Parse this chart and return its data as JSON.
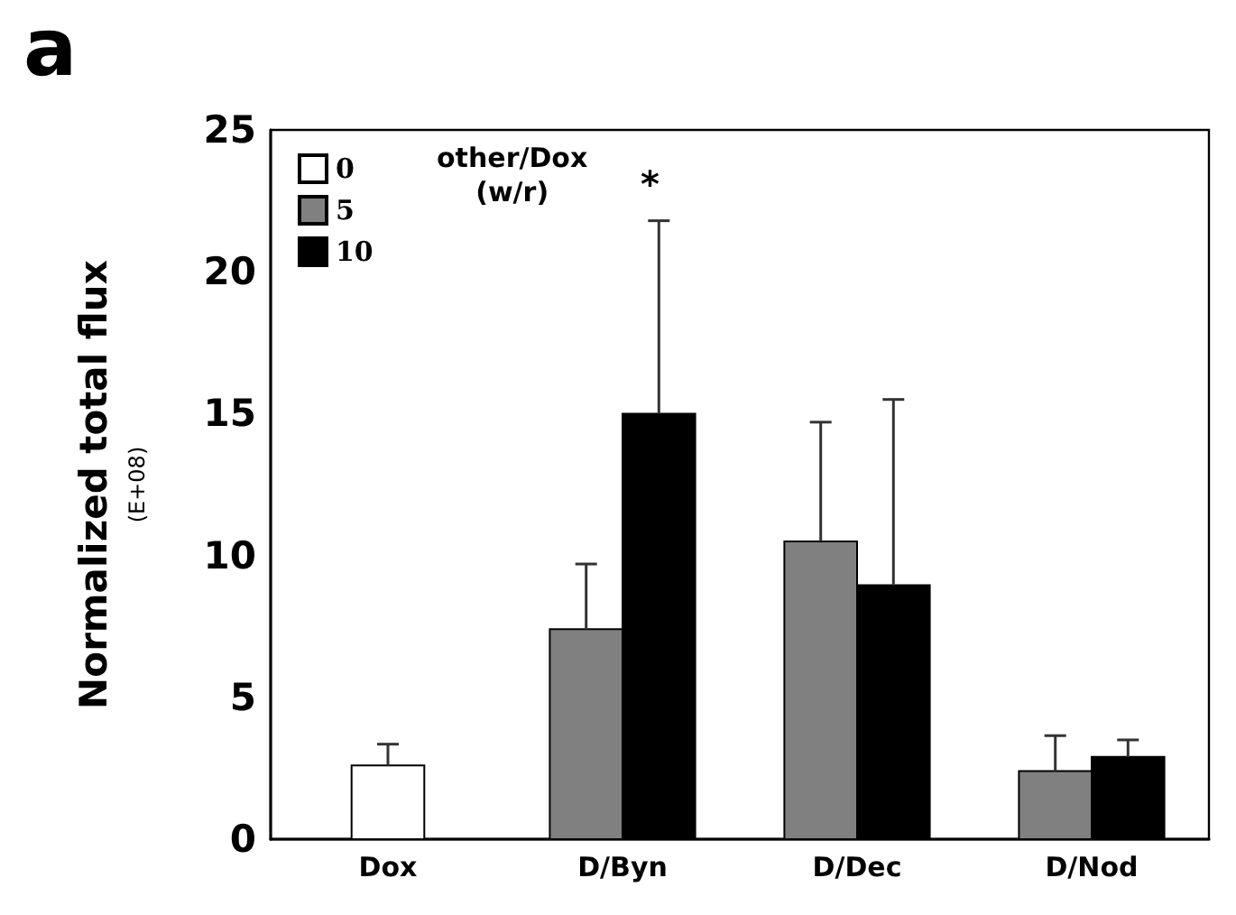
{
  "chart_data": {
    "type": "bar",
    "title": "a",
    "ylabel": "Normalized total flux\n(E+08)",
    "legend_title": "other/Dox\n(w/r)",
    "categories": [
      "Dox",
      "D/Byn",
      "D/Dec",
      "D/Nod"
    ],
    "series": [
      {
        "name": "0",
        "color": "#ffffff",
        "values": [
          2.6,
          null,
          null,
          null
        ],
        "errors": [
          [
            2.6,
            3.35
          ],
          null,
          null,
          null
        ]
      },
      {
        "name": "5",
        "color": "#808080",
        "values": [
          null,
          7.4,
          10.5,
          2.4
        ],
        "errors": [
          null,
          [
            7.4,
            9.7
          ],
          [
            10.5,
            14.7
          ],
          [
            2.4,
            3.65
          ]
        ]
      },
      {
        "name": "10",
        "color": "#000000",
        "values": [
          null,
          15.0,
          8.95,
          2.9
        ],
        "errors": [
          null,
          [
            15.0,
            21.8
          ],
          [
            8.95,
            15.5
          ],
          [
            2.9,
            3.5
          ]
        ]
      }
    ],
    "ylim": [
      0,
      25
    ],
    "yticks": [
      0,
      5,
      10,
      15,
      20,
      25
    ],
    "grid": false,
    "legend": "top left",
    "annotations": [
      "*"
    ]
  }
}
